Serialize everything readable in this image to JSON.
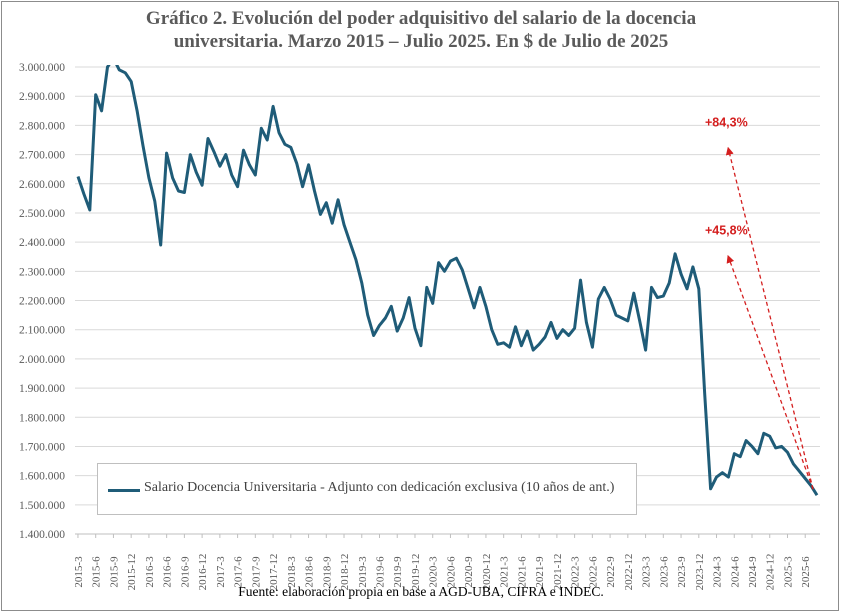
{
  "title_line1": "Gráfico 2. Evolución del poder adquisitivo del salario de la docencia",
  "title_line2": "universitaria. Marzo 2015 – Julio 2025. En $ de Julio de 2025",
  "source": "Fuente: elaboración propia en base a AGD-UBA, CIFRA e INDEC.",
  "legend_label": "Salario Docencia Universitaria - Adjunto con dedicación exclusiva (10 años de ant.)",
  "colors": {
    "line": "#1f5c78",
    "annotation": "#d41f1f",
    "grid": "#d9d9d9",
    "axis_text": "#595959"
  },
  "chart_data": {
    "type": "line",
    "title": "Gráfico 2. Evolución del poder adquisitivo del salario de la docencia universitaria. Marzo 2015 – Julio 2025. En $ de Julio de 2025",
    "ylim": [
      1400000,
      3000000
    ],
    "grid": true,
    "legend_placement": "bottom-left",
    "y_ticks": [
      1400000,
      1500000,
      1600000,
      1700000,
      1800000,
      1900000,
      2000000,
      2100000,
      2200000,
      2300000,
      2400000,
      2500000,
      2600000,
      2700000,
      2800000,
      2900000,
      3000000
    ],
    "y_tick_labels": [
      "1.400.000",
      "1.500.000",
      "1.600.000",
      "1.700.000",
      "1.800.000",
      "1.900.000",
      "2.000.000",
      "2.100.000",
      "2.200.000",
      "2.300.000",
      "2.400.000",
      "2.500.000",
      "2.600.000",
      "2.700.000",
      "2.800.000",
      "2.900.000",
      "3.000.000"
    ],
    "x_tick_labels": [
      "2015-3",
      "2015-6",
      "2015-9",
      "2015-12",
      "2016-3",
      "2016-6",
      "2016-9",
      "2016-12",
      "2017-3",
      "2017-6",
      "2017-9",
      "2017-12",
      "2018-3",
      "2018-6",
      "2018-9",
      "2018-12",
      "2019-3",
      "2019-6",
      "2019-9",
      "2019-12",
      "2020-3",
      "2020-6",
      "2020-9",
      "2020-12",
      "2021-3",
      "2021-6",
      "2021-9",
      "2021-12",
      "2022-3",
      "2022-6",
      "2022-9",
      "2022-12",
      "2023-3",
      "2023-6",
      "2023-9",
      "2023-12",
      "2024-3",
      "2024-6",
      "2024-9",
      "2024-12",
      "2025-3",
      "2025-6"
    ],
    "series": [
      {
        "name": "Salario Docencia Universitaria - Adjunto con dedicación exclusiva (10 años de ant.)",
        "start": "2015-3",
        "end": "2025-7",
        "frequency": "monthly",
        "values": [
          2625000,
          2565000,
          2510000,
          2905000,
          2850000,
          3000000,
          3030000,
          2990000,
          2980000,
          2950000,
          2850000,
          2730000,
          2620000,
          2540000,
          2390000,
          2705000,
          2620000,
          2575000,
          2570000,
          2700000,
          2640000,
          2595000,
          2755000,
          2710000,
          2660000,
          2700000,
          2630000,
          2590000,
          2715000,
          2665000,
          2630000,
          2790000,
          2750000,
          2865000,
          2775000,
          2735000,
          2725000,
          2670000,
          2590000,
          2665000,
          2575000,
          2495000,
          2535000,
          2465000,
          2545000,
          2460000,
          2400000,
          2340000,
          2260000,
          2150000,
          2080000,
          2115000,
          2140000,
          2180000,
          2095000,
          2140000,
          2210000,
          2105000,
          2045000,
          2245000,
          2190000,
          2330000,
          2300000,
          2335000,
          2345000,
          2305000,
          2240000,
          2175000,
          2245000,
          2180000,
          2100000,
          2050000,
          2055000,
          2040000,
          2110000,
          2045000,
          2095000,
          2030000,
          2050000,
          2075000,
          2125000,
          2070000,
          2100000,
          2080000,
          2105000,
          2270000,
          2125000,
          2040000,
          2205000,
          2245000,
          2205000,
          2150000,
          2140000,
          2130000,
          2225000,
          2130000,
          2030000,
          2245000,
          2210000,
          2215000,
          2260000,
          2360000,
          2290000,
          2240000,
          2315000,
          2240000,
          1880000,
          1555000,
          1595000,
          1610000,
          1595000,
          1675000,
          1665000,
          1720000,
          1700000,
          1675000,
          1745000,
          1735000,
          1695000,
          1700000,
          1680000,
          1640000,
          1615000,
          1590000,
          1565000,
          1533000
        ]
      }
    ],
    "annotations": [
      {
        "label": "+84,3%",
        "from": "2025-7",
        "to": "2024-5",
        "value_at_tip": 2720000
      },
      {
        "label": "+45,8%",
        "from": "2025-7",
        "to": "2024-5",
        "value_at_tip": 2350000
      }
    ]
  }
}
